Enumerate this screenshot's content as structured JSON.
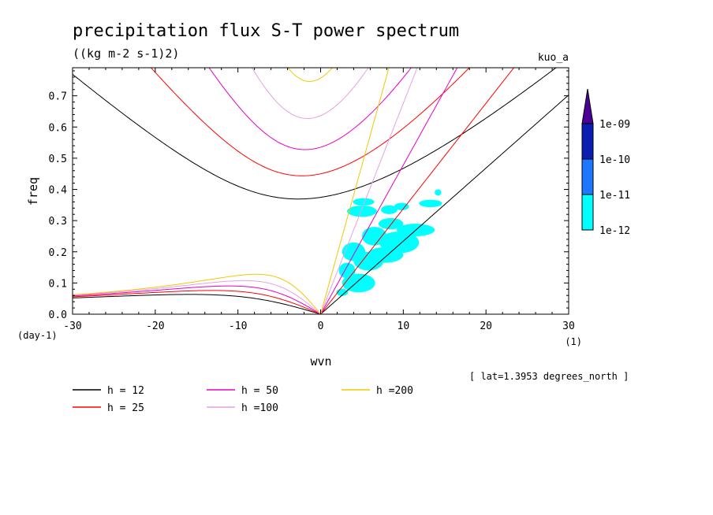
{
  "chart_data": {
    "type": "contour",
    "title": "precipitation flux S-T power spectrum",
    "subtitle": "((kg m-2 s-1)2)",
    "model_label": "kuo_a",
    "xlabel": "wvn",
    "ylabel": "freq",
    "x_unit_label": "(1)",
    "y_unit_label": "(day-1)",
    "annotation": "[ lat=1.3953 degrees_north ]",
    "xlim": [
      -30,
      30
    ],
    "ylim": [
      0,
      0.79
    ],
    "x_ticks": [
      -30,
      -20,
      -10,
      0,
      10,
      20,
      30
    ],
    "x_tick_labels": [
      "-30",
      "-20",
      "-10",
      "0",
      "10",
      "20",
      "30"
    ],
    "y_ticks": [
      0,
      0.1,
      0.2,
      0.3,
      0.4,
      0.5,
      0.6,
      0.7
    ],
    "y_tick_labels": [
      "0.0",
      "0.1",
      "0.2",
      "0.3",
      "0.4",
      "0.5",
      "0.6",
      "0.7"
    ],
    "colorbar": {
      "labels": [
        "1e-12",
        "1e-11",
        "1e-10",
        "1e-09"
      ],
      "colors": [
        "#00ffff",
        "#1e78ff",
        "#0a1eb4",
        "#4b0096"
      ]
    },
    "shaded_region": {
      "level": "1e-12 to 1e-11",
      "color": "#00ffff",
      "blobs": [
        {
          "x": 2.6,
          "y": 0.07,
          "rx": 0.7,
          "ry": 0.012
        },
        {
          "x": 4.6,
          "y": 0.1,
          "rx": 2.0,
          "ry": 0.03
        },
        {
          "x": 3.2,
          "y": 0.14,
          "rx": 1.0,
          "ry": 0.025
        },
        {
          "x": 5.8,
          "y": 0.17,
          "rx": 1.8,
          "ry": 0.03
        },
        {
          "x": 4.0,
          "y": 0.2,
          "rx": 1.4,
          "ry": 0.03
        },
        {
          "x": 7.8,
          "y": 0.19,
          "rx": 2.2,
          "ry": 0.025
        },
        {
          "x": 9.5,
          "y": 0.23,
          "rx": 2.4,
          "ry": 0.035
        },
        {
          "x": 11.5,
          "y": 0.27,
          "rx": 2.3,
          "ry": 0.02
        },
        {
          "x": 6.5,
          "y": 0.25,
          "rx": 1.5,
          "ry": 0.03
        },
        {
          "x": 8.5,
          "y": 0.29,
          "rx": 1.5,
          "ry": 0.018
        },
        {
          "x": 5.0,
          "y": 0.33,
          "rx": 1.8,
          "ry": 0.018
        },
        {
          "x": 8.3,
          "y": 0.335,
          "rx": 1.0,
          "ry": 0.014
        },
        {
          "x": 9.8,
          "y": 0.345,
          "rx": 0.9,
          "ry": 0.012
        },
        {
          "x": 5.2,
          "y": 0.36,
          "rx": 1.3,
          "ry": 0.012
        },
        {
          "x": 13.3,
          "y": 0.355,
          "rx": 1.4,
          "ry": 0.012
        },
        {
          "x": 14.2,
          "y": 0.39,
          "rx": 0.4,
          "ry": 0.01
        }
      ]
    },
    "series": [
      {
        "name": "h = 12",
        "h": 12,
        "color": "#000000"
      },
      {
        "name": "h = 25",
        "h": 25,
        "color": "#ff0000"
      },
      {
        "name": "h = 50",
        "h": 50,
        "color": "#e600c8"
      },
      {
        "name": "h =100",
        "h": 100,
        "color": "#e6a0e6"
      },
      {
        "name": "h =200",
        "h": 200,
        "color": "#f0c800"
      }
    ]
  }
}
